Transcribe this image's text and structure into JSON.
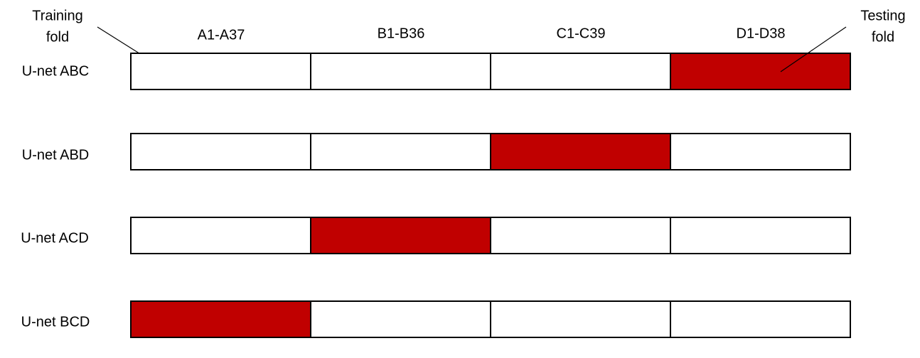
{
  "columns": [
    "A1-A37",
    "B1-B36",
    "C1-C39",
    "D1-D38"
  ],
  "rows": [
    "U-net ABC",
    "U-net ABD",
    "U-net ACD",
    "U-net BCD"
  ],
  "training_callout": [
    "Training",
    "fold"
  ],
  "testing_callout": [
    "Testing",
    "fold"
  ]
}
